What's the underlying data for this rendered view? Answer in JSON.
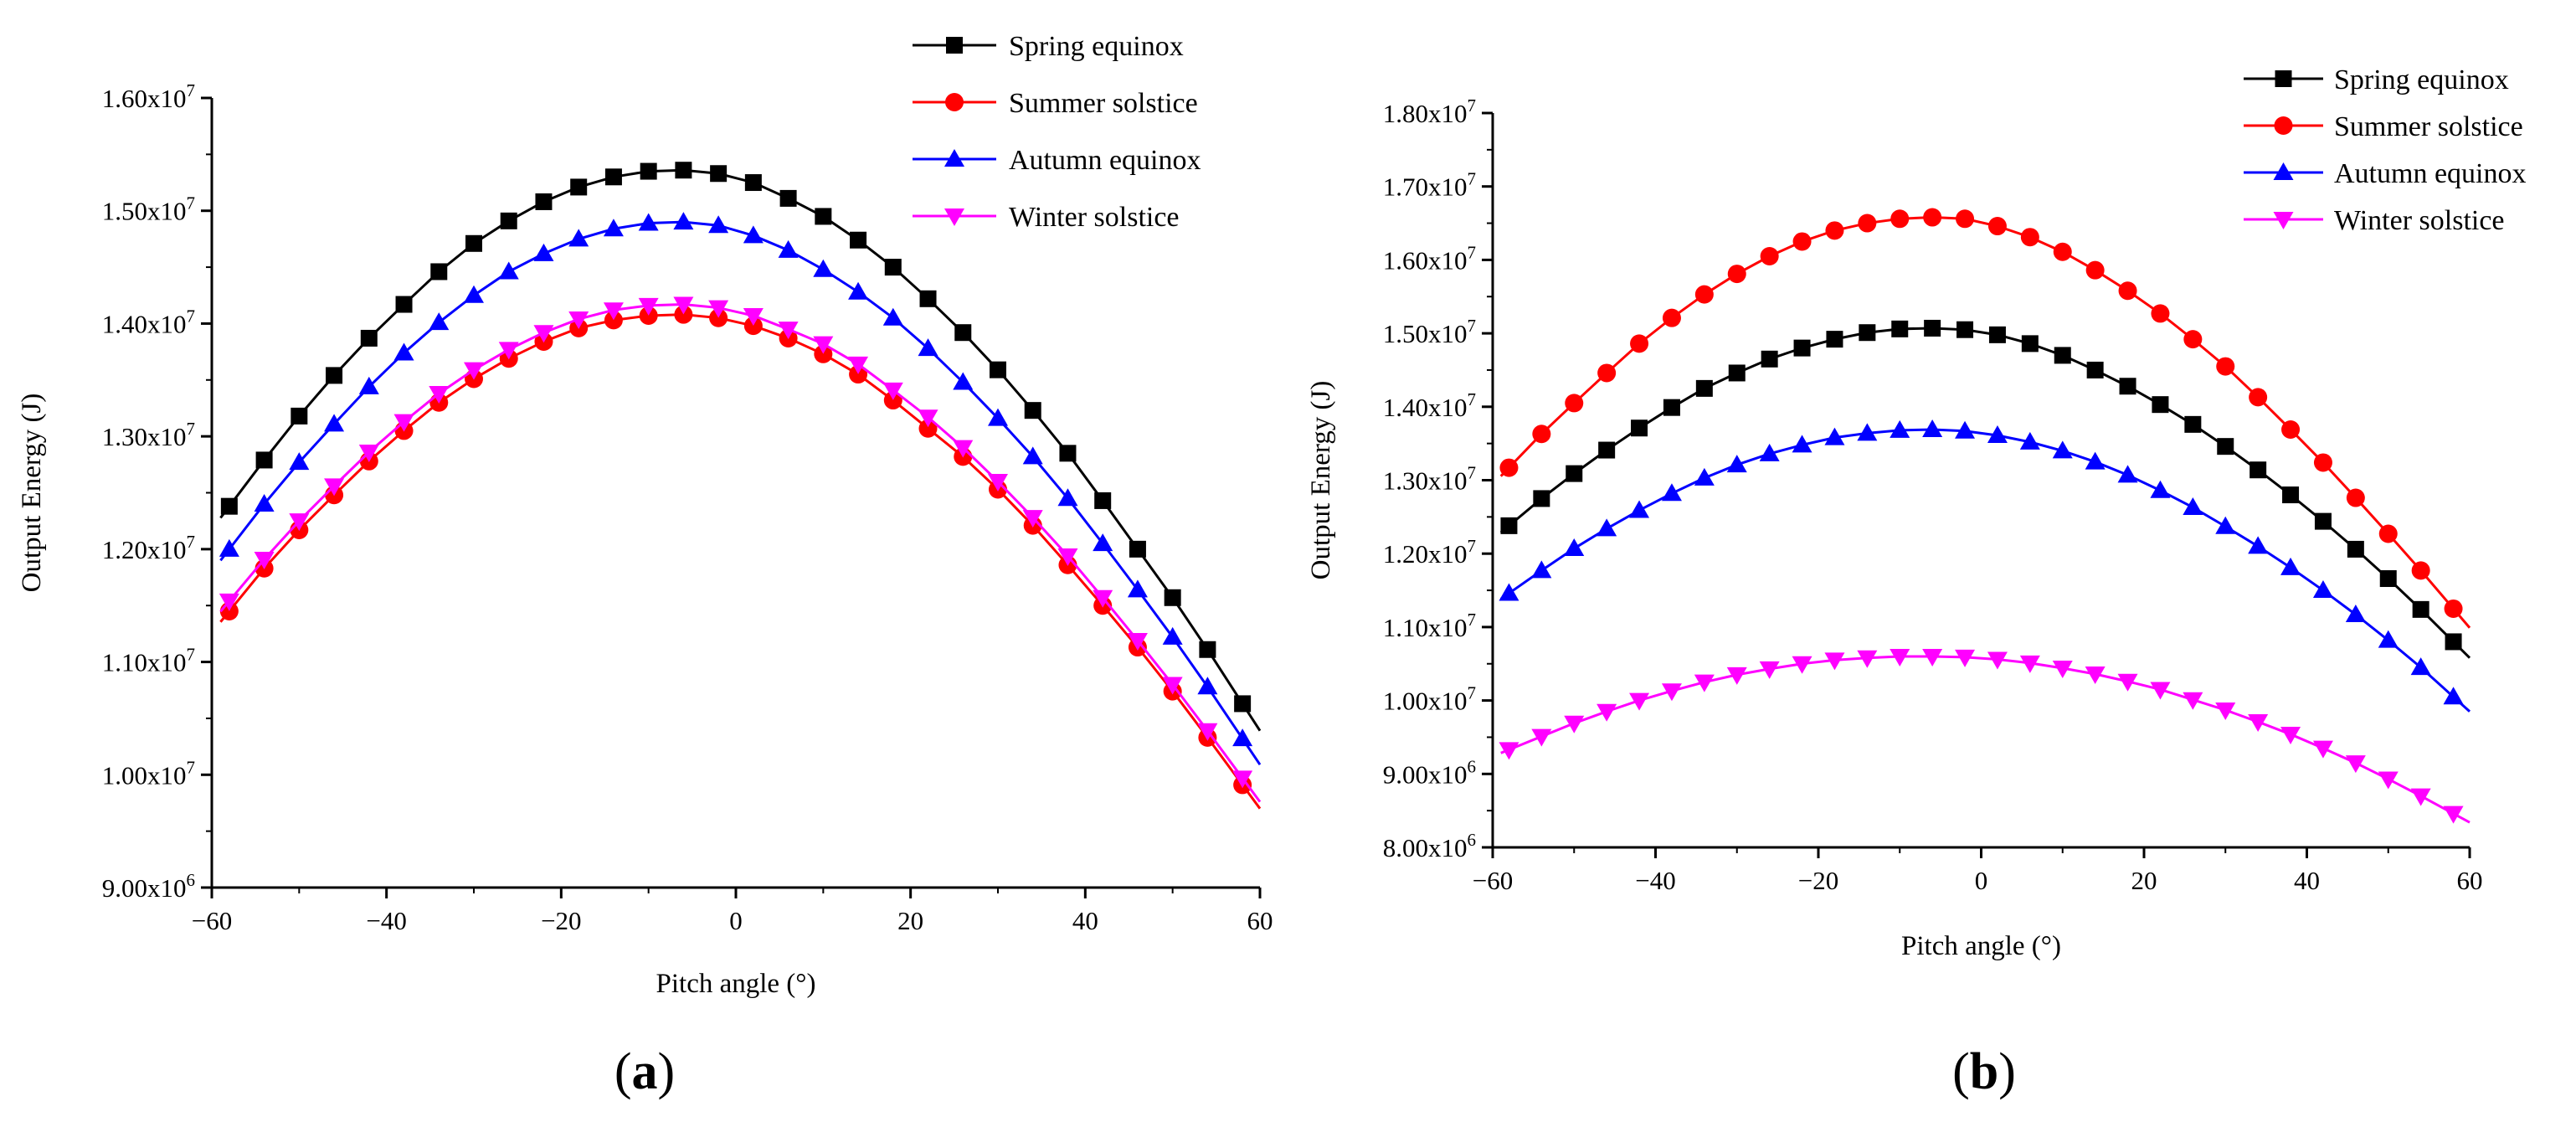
{
  "chart_data": [
    {
      "type": "line",
      "panel_label": "(a)",
      "panel_letter": "a",
      "xlabel": "Pitch angle (°)",
      "ylabel": "Output Energy (J)",
      "xlim": [
        -60,
        60
      ],
      "ylim": [
        9000000,
        16000000
      ],
      "x_ticks": [
        -60,
        -40,
        -20,
        0,
        20,
        40,
        60
      ],
      "x_tick_labels": [
        "−60",
        "−40",
        "−20",
        "0",
        "20",
        "40",
        "60"
      ],
      "y_ticks": [
        9000000,
        10000000,
        11000000,
        12000000,
        13000000,
        14000000,
        15000000,
        16000000
      ],
      "y_tick_labels": [
        {
          "mantissa": "9.00x10",
          "exp": "6"
        },
        {
          "mantissa": "1.00x10",
          "exp": "7"
        },
        {
          "mantissa": "1.10x10",
          "exp": "7"
        },
        {
          "mantissa": "1.20x10",
          "exp": "7"
        },
        {
          "mantissa": "1.30x10",
          "exp": "7"
        },
        {
          "mantissa": "1.40x10",
          "exp": "7"
        },
        {
          "mantissa": "1.50x10",
          "exp": "7"
        },
        {
          "mantissa": "1.60x10",
          "exp": "7"
        }
      ],
      "grid": false,
      "legend_position": "top-right",
      "x": [
        -58,
        -54,
        -50,
        -46,
        -42,
        -38,
        -34,
        -30,
        -26,
        -22,
        -18,
        -14,
        -10,
        -6,
        -2,
        2,
        6,
        10,
        14,
        18,
        22,
        26,
        30,
        34,
        38,
        42,
        46,
        50,
        54,
        58
      ],
      "series": [
        {
          "name": "Spring equinox",
          "marker": "square",
          "color": "#000000",
          "values": [
            12380000,
            12790000,
            13180000,
            13540000,
            13870000,
            14170000,
            14460000,
            14710000,
            14910000,
            15080000,
            15210000,
            15300000,
            15350000,
            15360000,
            15330000,
            15250000,
            15110000,
            14950000,
            14740000,
            14500000,
            14220000,
            13920000,
            13590000,
            13230000,
            12850000,
            12430000,
            12000000,
            11570000,
            11110000,
            10630000
          ]
        },
        {
          "name": "Summer solstice",
          "marker": "circle",
          "color": "#ff0000",
          "values": [
            11450000,
            11830000,
            12170000,
            12480000,
            12780000,
            13050000,
            13300000,
            13510000,
            13690000,
            13840000,
            13960000,
            14030000,
            14070000,
            14080000,
            14050000,
            13980000,
            13870000,
            13730000,
            13550000,
            13320000,
            13070000,
            12820000,
            12530000,
            12210000,
            11860000,
            11500000,
            11130000,
            10740000,
            10330000,
            9910000
          ]
        },
        {
          "name": "Autumn equinox",
          "marker": "triangle-up",
          "color": "#0000ff",
          "values": [
            12000000,
            12400000,
            12770000,
            13110000,
            13440000,
            13740000,
            14010000,
            14250000,
            14460000,
            14620000,
            14750000,
            14840000,
            14890000,
            14900000,
            14870000,
            14780000,
            14650000,
            14480000,
            14280000,
            14050000,
            13780000,
            13480000,
            13160000,
            12820000,
            12450000,
            12050000,
            11640000,
            11220000,
            10780000,
            10320000
          ]
        },
        {
          "name": "Winter solstice",
          "marker": "triangle-down",
          "color": "#ff00ff",
          "values": [
            11540000,
            11910000,
            12250000,
            12560000,
            12860000,
            13130000,
            13380000,
            13590000,
            13770000,
            13920000,
            14040000,
            14120000,
            14160000,
            14170000,
            14140000,
            14070000,
            13950000,
            13820000,
            13640000,
            13410000,
            13170000,
            12900000,
            12600000,
            12280000,
            11940000,
            11570000,
            11190000,
            10800000,
            10390000,
            9970000
          ]
        }
      ]
    },
    {
      "type": "line",
      "panel_label": "(b)",
      "panel_letter": "b",
      "xlabel": "Pitch angle (°)",
      "ylabel": "Output Energy (J)",
      "xlim": [
        -60,
        60
      ],
      "ylim": [
        8000000,
        18000000
      ],
      "x_ticks": [
        -60,
        -40,
        -20,
        0,
        20,
        40,
        60
      ],
      "x_tick_labels": [
        "−60",
        "−40",
        "−20",
        "0",
        "20",
        "40",
        "60"
      ],
      "y_ticks": [
        8000000,
        9000000,
        10000000,
        11000000,
        12000000,
        13000000,
        14000000,
        15000000,
        16000000,
        17000000,
        18000000
      ],
      "y_tick_labels": [
        {
          "mantissa": "8.00x10",
          "exp": "6"
        },
        {
          "mantissa": "9.00x10",
          "exp": "6"
        },
        {
          "mantissa": "1.00x10",
          "exp": "7"
        },
        {
          "mantissa": "1.10x10",
          "exp": "7"
        },
        {
          "mantissa": "1.20x10",
          "exp": "7"
        },
        {
          "mantissa": "1.30x10",
          "exp": "7"
        },
        {
          "mantissa": "1.40x10",
          "exp": "7"
        },
        {
          "mantissa": "1.50x10",
          "exp": "7"
        },
        {
          "mantissa": "1.60x10",
          "exp": "7"
        },
        {
          "mantissa": "1.70x10",
          "exp": "7"
        },
        {
          "mantissa": "1.80x10",
          "exp": "7"
        }
      ],
      "grid": false,
      "legend_position": "top-right",
      "x": [
        -58,
        -54,
        -50,
        -46,
        -42,
        -38,
        -34,
        -30,
        -26,
        -22,
        -18,
        -14,
        -10,
        -6,
        -2,
        2,
        6,
        10,
        14,
        18,
        22,
        26,
        30,
        34,
        38,
        42,
        46,
        50,
        54,
        58
      ],
      "series": [
        {
          "name": "Spring equinox",
          "marker": "square",
          "color": "#000000",
          "values": [
            12380000,
            12750000,
            13090000,
            13410000,
            13710000,
            13990000,
            14250000,
            14460000,
            14650000,
            14800000,
            14920000,
            15010000,
            15060000,
            15070000,
            15050000,
            14980000,
            14860000,
            14700000,
            14500000,
            14280000,
            14030000,
            13760000,
            13460000,
            13140000,
            12800000,
            12440000,
            12060000,
            11660000,
            11240000,
            10800000
          ]
        },
        {
          "name": "Summer solstice",
          "marker": "circle",
          "color": "#ff0000",
          "values": [
            13170000,
            13630000,
            14050000,
            14460000,
            14860000,
            15210000,
            15530000,
            15810000,
            16050000,
            16250000,
            16400000,
            16500000,
            16560000,
            16580000,
            16560000,
            16460000,
            16310000,
            16110000,
            15860000,
            15580000,
            15270000,
            14920000,
            14550000,
            14130000,
            13690000,
            13240000,
            12760000,
            12270000,
            11770000,
            11250000
          ]
        },
        {
          "name": "Autumn equinox",
          "marker": "triangle-up",
          "color": "#0000ff",
          "values": [
            11460000,
            11770000,
            12070000,
            12340000,
            12590000,
            12820000,
            13030000,
            13210000,
            13360000,
            13480000,
            13580000,
            13640000,
            13680000,
            13690000,
            13670000,
            13610000,
            13520000,
            13400000,
            13250000,
            13070000,
            12860000,
            12630000,
            12370000,
            12100000,
            11810000,
            11500000,
            11170000,
            10820000,
            10450000,
            10050000
          ]
        },
        {
          "name": "Winter solstice",
          "marker": "triangle-down",
          "color": "#ff00ff",
          "values": [
            9330000,
            9510000,
            9690000,
            9850000,
            10000000,
            10130000,
            10250000,
            10350000,
            10430000,
            10500000,
            10550000,
            10580000,
            10600000,
            10600000,
            10590000,
            10560000,
            10510000,
            10440000,
            10360000,
            10260000,
            10150000,
            10010000,
            9870000,
            9710000,
            9540000,
            9350000,
            9150000,
            8930000,
            8700000,
            8460000
          ]
        }
      ]
    }
  ]
}
